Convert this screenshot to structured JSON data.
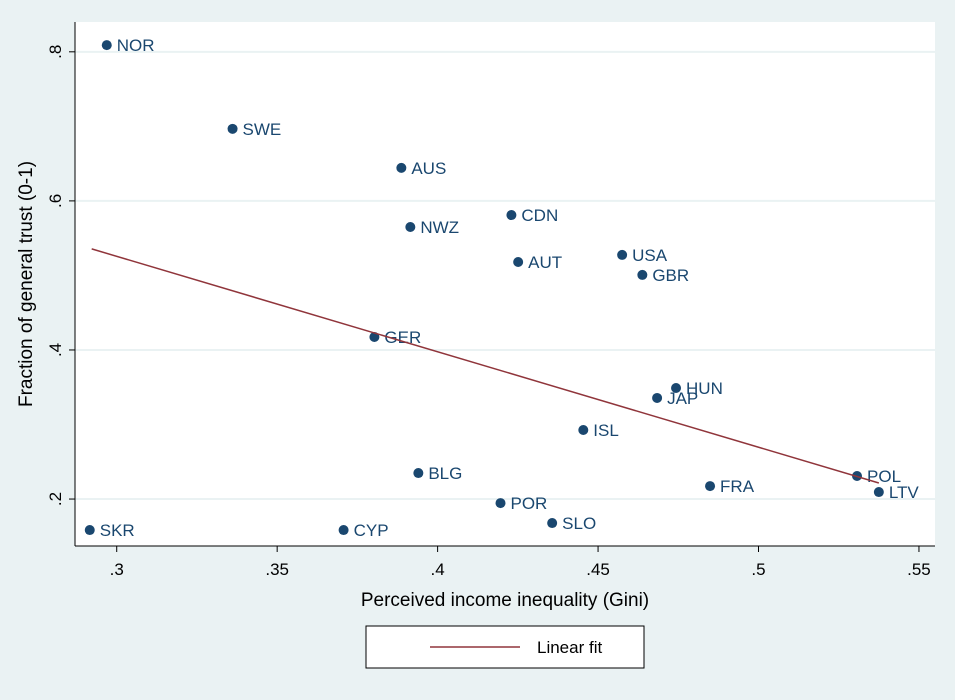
{
  "chart_data": {
    "type": "scatter",
    "xlabel": "Perceived income inequality (Gini)",
    "ylabel": "Fraction of general trust (0-1)",
    "xlim": [
      0.287,
      0.555
    ],
    "ylim": [
      0.137,
      0.84
    ],
    "xticks": [
      {
        "value": 0.3,
        "label": ".3"
      },
      {
        "value": 0.35,
        "label": ".35"
      },
      {
        "value": 0.4,
        "label": ".4"
      },
      {
        "value": 0.45,
        "label": ".45"
      },
      {
        "value": 0.5,
        "label": ".5"
      },
      {
        "value": 0.55,
        "label": ".55"
      }
    ],
    "yticks": [
      {
        "value": 0.2,
        "label": ".2"
      },
      {
        "value": 0.4,
        "label": ".4"
      },
      {
        "value": 0.6,
        "label": ".6"
      },
      {
        "value": 0.8,
        "label": ".8"
      }
    ],
    "grid": true,
    "series": [
      {
        "type": "scatter",
        "color": "#1a476f",
        "labels": [
          "NOR",
          "SWE",
          "AUS",
          "CDN",
          "NWZ",
          "AUT",
          "USA",
          "GBR",
          "GER",
          "HUN",
          "JAP",
          "ISL",
          "BLG",
          "FRA",
          "POL",
          "LTV",
          "POR",
          "SLO",
          "SKR",
          "CYP"
        ],
        "x": [
          0.2969,
          0.3361,
          0.3887,
          0.423,
          0.3915,
          0.4251,
          0.4575,
          0.4638,
          0.3803,
          0.4743,
          0.4684,
          0.4454,
          0.394,
          0.4849,
          0.5307,
          0.5375,
          0.4196,
          0.4357,
          0.2916,
          0.3707
        ],
        "values": [
          0.809,
          0.6967,
          0.6443,
          0.581,
          0.565,
          0.518,
          0.5275,
          0.5007,
          0.4174,
          0.349,
          0.3356,
          0.2926,
          0.2349,
          0.2174,
          0.2309,
          0.2094,
          0.1946,
          0.1678,
          0.1584,
          0.1584
        ]
      },
      {
        "type": "line",
        "name": "Linear fit",
        "color": "#90353b",
        "x": [
          0.2922,
          0.5375
        ],
        "values": [
          0.5356,
          0.2215
        ]
      }
    ]
  }
}
